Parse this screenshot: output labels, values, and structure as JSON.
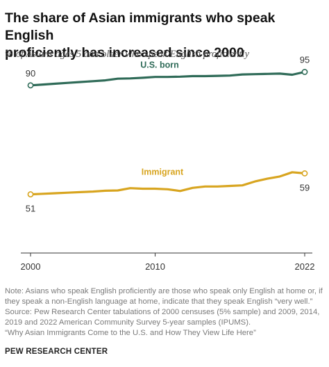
{
  "header": {
    "title_line1": "The share of Asian immigrants who speak English",
    "title_line2": "proficiently has increased since 2000",
    "subtitle": "% of Asians ages 5 and older who speak English proficiently"
  },
  "chart_data": {
    "type": "line",
    "title": "The share of Asian immigrants who speak English proficiently has increased since 2000",
    "subtitle": "% of Asians ages 5 and older who speak English proficiently",
    "x": [
      2000,
      2001,
      2002,
      2003,
      2004,
      2005,
      2006,
      2007,
      2008,
      2009,
      2010,
      2011,
      2012,
      2013,
      2014,
      2015,
      2016,
      2017,
      2018,
      2019,
      2020,
      2021,
      2022
    ],
    "x_ticks": [
      "2000",
      "2010",
      "2022"
    ],
    "xlim": [
      2000,
      2022
    ],
    "ylim": [
      40,
      100
    ],
    "grid": false,
    "legend": "inline labels",
    "series": [
      {
        "name": "U.S. born",
        "color": "#2f6b58",
        "values": [
          90,
          90.3,
          90.6,
          90.9,
          91.2,
          91.5,
          91.8,
          92.4,
          92.5,
          92.7,
          93,
          93,
          93.1,
          93.3,
          93.3,
          93.4,
          93.5,
          93.9,
          94,
          94.1,
          94.2,
          93.8,
          94.8
        ]
      },
      {
        "name": "Immigrant",
        "color": "#d8a520",
        "values": [
          51,
          51.2,
          51.4,
          51.6,
          51.8,
          52,
          52.3,
          52.4,
          53.2,
          53,
          53,
          52.8,
          52.2,
          53.3,
          53.8,
          53.8,
          54,
          54.2,
          55.6,
          56.6,
          57.4,
          58.9,
          58.5
        ]
      }
    ],
    "data_labels": [
      {
        "series": "U.S. born",
        "point": "first",
        "text": "90"
      },
      {
        "series": "U.S. born",
        "point": "last",
        "text": "95"
      },
      {
        "series": "Immigrant",
        "point": "first",
        "text": "51"
      },
      {
        "series": "Immigrant",
        "point": "last",
        "text": "59"
      }
    ]
  },
  "notes": [
    "Note: Asians who speak English proficiently are those who speak only English at home or, if",
    "they speak a non-English language at home, indicate that they speak English “very well.”",
    "Source: Pew Research Center tabulations of 2000 censuses (5% sample) and 2009, 2014,",
    "2019 and 2022 American Community Survey 5-year samples (IPUMS).",
    "“Why Asian Immigrants Come to the U.S. and How They View Life Here”"
  ],
  "footer": {
    "org": "PEW RESEARCH CENTER"
  }
}
